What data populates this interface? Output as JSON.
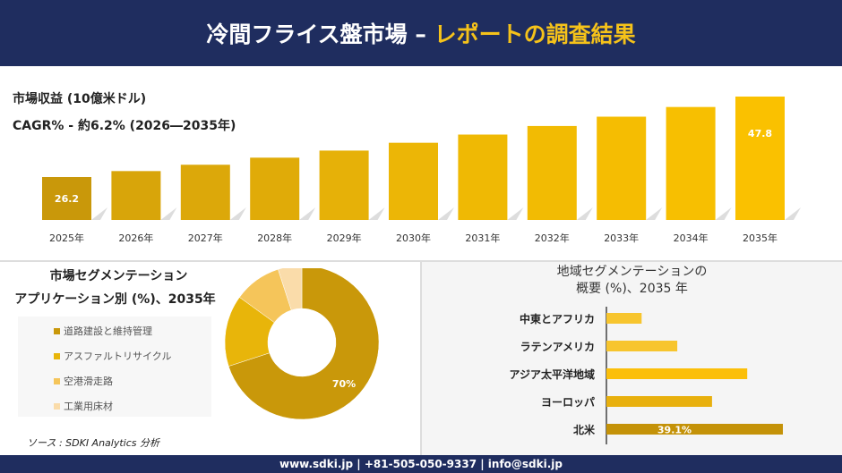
{
  "header": {
    "title_main": "冷間フライス盤市場 –",
    "title_accent": "レポートの調査結果"
  },
  "revenue": {
    "label": "市場収益 (10億米ドル)",
    "cagr": "CAGR% - 約6.2% (2026―2035年)"
  },
  "chart_data": [
    {
      "type": "bar",
      "categories": [
        "2025年",
        "2026年",
        "2027年",
        "2028年",
        "2029年",
        "2030年",
        "2031年",
        "2032年",
        "2033年",
        "2034年",
        "2035年"
      ],
      "values": [
        26.2,
        27.8,
        29.5,
        31.4,
        33.3,
        35.4,
        37.6,
        39.9,
        42.4,
        45.0,
        47.8
      ],
      "data_labels": {
        "0": "26.2",
        "10": "47.8"
      },
      "colors": [
        "#c9980a",
        "#d8a50a",
        "#dca80a",
        "#e0ab08",
        "#e6b108",
        "#ecb606",
        "#efb904",
        "#f2bb03",
        "#f5bd02",
        "#f7bf01",
        "#fac100"
      ]
    },
    {
      "type": "pie",
      "title": "市場セグメンテーション アプリケーション別 (%)、2035年",
      "labels": [
        "道路建設と維持管理",
        "アスファルトリサイクル",
        "空港滑走路",
        "工業用床材"
      ],
      "values": [
        70,
        15,
        10,
        5
      ],
      "data_labels": [
        "70%"
      ],
      "colors": [
        "#c9980a",
        "#e8b50a",
        "#f5c55a",
        "#fadcaa"
      ]
    },
    {
      "type": "bar",
      "orientation": "horizontal",
      "title": "地域セグメンテーションの 概要 (%)、2035 年",
      "categories": [
        "中東とアフリカ",
        "ラテンアメリカ",
        "アジア太平洋地域",
        "ヨーロッパ",
        "北米"
      ],
      "values": [
        7.8,
        15.7,
        31.2,
        23.4,
        39.1
      ],
      "data_labels": {
        "4": "39.1%"
      },
      "colors": [
        "#f7c52e",
        "#f7c52e",
        "#fbbf0a",
        "#e8b00e",
        "#c49208"
      ]
    }
  ],
  "segment": {
    "title1": "市場セグメンテーション",
    "title2": "アプリケーション別 (%)、2035年"
  },
  "region": {
    "title1": "地域セグメンテーションの",
    "title2": "概要 (%)、2035 年"
  },
  "source": "ソース : SDKI Analytics 分析",
  "footer": "www.sdki.jp | +81-505-050-9337 | info@sdki.jp"
}
